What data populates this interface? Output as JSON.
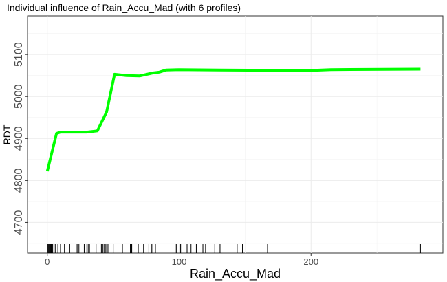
{
  "chart_data": {
    "type": "line",
    "title": "Individual influence of Rain_Accu_Mad (with 6 profiles)",
    "xlabel": "Rain_Accu_Mad",
    "ylabel": "RDT",
    "xlim": [
      -15,
      300
    ],
    "ylim": [
      4627,
      5192
    ],
    "x_ticks": [
      0,
      100,
      200
    ],
    "y_ticks": [
      4700,
      4800,
      4900,
      5000,
      5100
    ],
    "grid": true,
    "line_color": "#00ff00",
    "rug_color": "#000000",
    "series": [
      {
        "x": [
          0,
          7,
          10,
          30,
          38,
          45,
          51,
          60,
          70,
          80,
          85,
          90,
          100,
          130,
          200,
          215,
          283
        ],
        "values": [
          4822,
          4912,
          4915,
          4915,
          4918,
          4963,
          5053,
          5050,
          5049,
          5056,
          5058,
          5063,
          5064,
          5063,
          5062,
          5064,
          5065
        ]
      }
    ],
    "rug_x": [
      0,
      0.5,
      1,
      1.5,
      2,
      2.5,
      3,
      3.5,
      4,
      5,
      6,
      8,
      10,
      13,
      17,
      22,
      23,
      24,
      28,
      30,
      31,
      32,
      37,
      41,
      42,
      43,
      44,
      45,
      46,
      50,
      57,
      63,
      64,
      65,
      69,
      73,
      77,
      79,
      80,
      82,
      97,
      98,
      101,
      102,
      106,
      109,
      113,
      118,
      120,
      127,
      131,
      144,
      148,
      167,
      283
    ]
  }
}
